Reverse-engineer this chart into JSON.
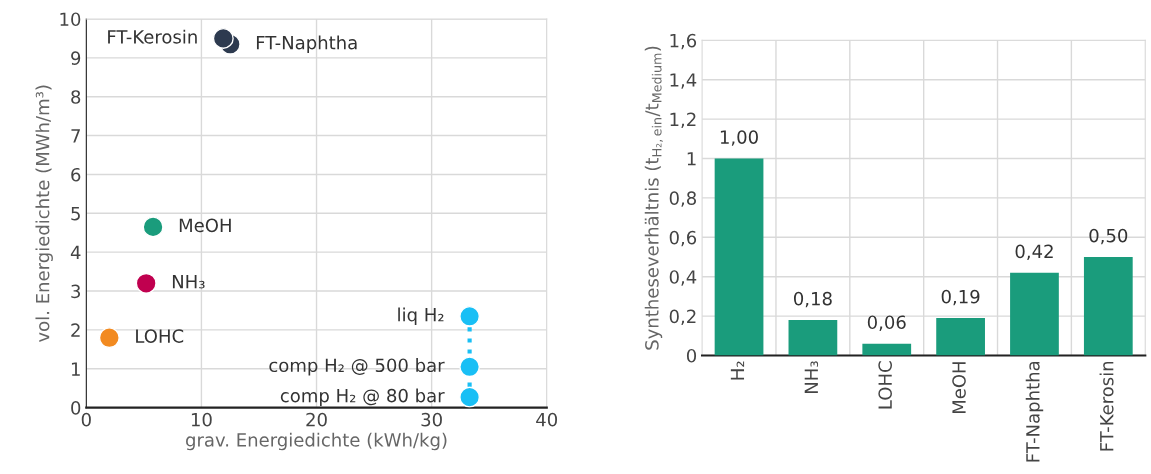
{
  "chart_data": [
    {
      "type": "scatter",
      "xlabel": "grav. Energiedichte (kWh/kg)",
      "ylabel": "vol. Energiedichte (MWh/m³)",
      "xlim": [
        0,
        40
      ],
      "ylim": [
        0,
        10
      ],
      "xticks": [
        0,
        10,
        20,
        30,
        40
      ],
      "yticks": [
        0,
        1,
        2,
        3,
        4,
        5,
        6,
        7,
        8,
        9,
        10
      ],
      "grid": true,
      "marker": "circle",
      "series": [
        {
          "type": "scatter",
          "x": [
            12.5,
            11.9,
            5.8,
            5.2,
            2.0
          ],
          "values": [
            9.35,
            9.5,
            4.65,
            3.2,
            1.8
          ],
          "colors": [
            "#2d3a4f",
            "#2d3a4f",
            "#1a9c7c",
            "#c0004f",
            "#f28a20"
          ]
        },
        {
          "type": "line",
          "line_style": "dotted",
          "color": "#19bff5",
          "x": [
            33.3,
            33.3,
            33.3
          ],
          "values": [
            2.35,
            1.05,
            0.27
          ]
        }
      ],
      "annotations": [
        {
          "text": "FT-Naphtha",
          "x": 12.5,
          "y": 9.35
        },
        {
          "text": "FT-Kerosin",
          "x": 11.9,
          "y": 9.5
        },
        {
          "text": "MeOH",
          "x": 5.8,
          "y": 4.65
        },
        {
          "text": "NH₃",
          "x": 5.2,
          "y": 3.2
        },
        {
          "text": "LOHC",
          "x": 2.0,
          "y": 1.8
        },
        {
          "text": "liq H₂",
          "x": 33.3,
          "y": 2.35
        },
        {
          "text": "comp H₂ @ 500 bar",
          "x": 33.3,
          "y": 1.05
        },
        {
          "text": "comp H₂ @ 80 bar",
          "x": 33.3,
          "y": 0.27
        }
      ]
    },
    {
      "type": "bar",
      "ylabel": "Syntheseverhältnis (t$_{H₂,ein}$/t$_{Medium}$)",
      "categories": [
        "H₂",
        "NH₃",
        "LOHC",
        "MeOH",
        "FT-Naphtha",
        "FT-Kerosin"
      ],
      "values": [
        1.0,
        0.18,
        0.06,
        0.19,
        0.42,
        0.5
      ],
      "color": "#1a9c7c",
      "value_labels": [
        "1,00",
        "0,18",
        "0,06",
        "0,19",
        "0,42",
        "0,50"
      ],
      "ylim": [
        0,
        1.6
      ],
      "yticks": [
        0,
        {
          "value": 0.2,
          "label": "0,2"
        },
        {
          "value": 0.4,
          "label": "0,4"
        },
        {
          "value": 0.6,
          "label": "0,6"
        },
        {
          "value": 0.8,
          "label": "0,8"
        },
        1,
        {
          "value": 1.2,
          "label": "1,2"
        },
        {
          "value": 1.4,
          "label": "1,4"
        },
        {
          "value": 1.6,
          "label": "1,6"
        }
      ],
      "grid": true
    }
  ]
}
